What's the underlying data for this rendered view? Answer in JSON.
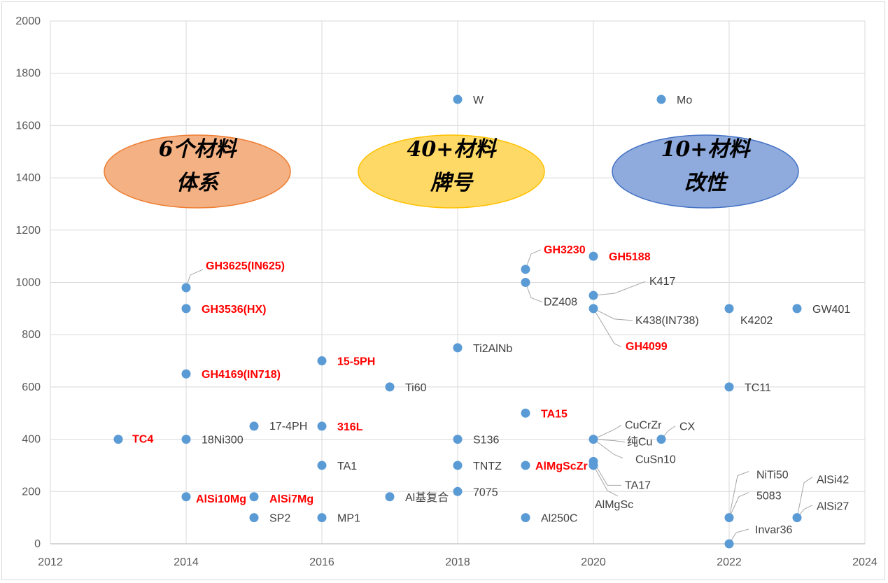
{
  "chart_data": {
    "type": "scatter",
    "title": "",
    "xlabel": "",
    "ylabel": "",
    "xlim": [
      2012,
      2024
    ],
    "ylim": [
      0,
      2000
    ],
    "x_ticks": [
      "2012",
      "2014",
      "2016",
      "2018",
      "2020",
      "2022",
      "2024"
    ],
    "y_ticks": [
      "0",
      "200",
      "400",
      "600",
      "800",
      "1000",
      "1200",
      "1400",
      "1600",
      "1800",
      "2000"
    ],
    "grid": true,
    "point_color": "#5b9bd5",
    "points": [
      {
        "x": 2013,
        "y": 400,
        "label": "TC4",
        "highlight": true
      },
      {
        "x": 2014,
        "y": 980,
        "label": "GH3625(IN625)",
        "highlight": true
      },
      {
        "x": 2014,
        "y": 900,
        "label": "GH3536(HX)",
        "highlight": true
      },
      {
        "x": 2014,
        "y": 650,
        "label": "GH4169(IN718)",
        "highlight": true
      },
      {
        "x": 2014,
        "y": 400,
        "label": "18Ni300",
        "highlight": false
      },
      {
        "x": 2014,
        "y": 180,
        "label": "AlSi10Mg",
        "highlight": true
      },
      {
        "x": 2015,
        "y": 450,
        "label": "17-4PH",
        "highlight": false
      },
      {
        "x": 2015,
        "y": 180,
        "label": "AlSi7Mg",
        "highlight": true
      },
      {
        "x": 2015,
        "y": 100,
        "label": "SP2",
        "highlight": false
      },
      {
        "x": 2016,
        "y": 700,
        "label": "15-5PH",
        "highlight": true
      },
      {
        "x": 2016,
        "y": 450,
        "label": "316L",
        "highlight": true
      },
      {
        "x": 2016,
        "y": 300,
        "label": "TA1",
        "highlight": false
      },
      {
        "x": 2016,
        "y": 100,
        "label": "MP1",
        "highlight": false
      },
      {
        "x": 2017,
        "y": 600,
        "label": "Ti60",
        "highlight": false
      },
      {
        "x": 2017,
        "y": 180,
        "label": "Al基复合",
        "highlight": false
      },
      {
        "x": 2018,
        "y": 1700,
        "label": "W",
        "highlight": false
      },
      {
        "x": 2018,
        "y": 750,
        "label": "Ti2AlNb",
        "highlight": false
      },
      {
        "x": 2018,
        "y": 400,
        "label": "S136",
        "highlight": false
      },
      {
        "x": 2018,
        "y": 300,
        "label": "TNTZ",
        "highlight": false
      },
      {
        "x": 2018,
        "y": 200,
        "label": "7075",
        "highlight": false
      },
      {
        "x": 2019,
        "y": 1050,
        "label": "GH3230",
        "highlight": true
      },
      {
        "x": 2019,
        "y": 1000,
        "label": "DZ408",
        "highlight": false
      },
      {
        "x": 2019,
        "y": 500,
        "label": "TA15",
        "highlight": true
      },
      {
        "x": 2019,
        "y": 300,
        "label": "AlMgScZr",
        "highlight": true
      },
      {
        "x": 2019,
        "y": 100,
        "label": "Al250C",
        "highlight": false
      },
      {
        "x": 2020,
        "y": 1100,
        "label": "GH5188",
        "highlight": true
      },
      {
        "x": 2020,
        "y": 950,
        "label": "K417",
        "highlight": false
      },
      {
        "x": 2020,
        "y": 900,
        "label": "K438(IN738)",
        "highlight": false
      },
      {
        "x": 2020,
        "y": 900,
        "label": "GH4099",
        "highlight": true
      },
      {
        "x": 2020,
        "y": 400,
        "label": "CuCrZr",
        "highlight": false
      },
      {
        "x": 2020,
        "y": 400,
        "label": "纯Cu",
        "highlight": false
      },
      {
        "x": 2020,
        "y": 400,
        "label": "CuSn10",
        "highlight": false
      },
      {
        "x": 2020,
        "y": 315,
        "label": "TA17",
        "highlight": false
      },
      {
        "x": 2020,
        "y": 300,
        "label": "AlMgSc",
        "highlight": false
      },
      {
        "x": 2021,
        "y": 1700,
        "label": "Mo",
        "highlight": false
      },
      {
        "x": 2021,
        "y": 400,
        "label": "CX",
        "highlight": false
      },
      {
        "x": 2022,
        "y": 900,
        "label": "K4202",
        "highlight": false
      },
      {
        "x": 2022,
        "y": 600,
        "label": "TC11",
        "highlight": false
      },
      {
        "x": 2022,
        "y": 100,
        "label": "NiTi50",
        "highlight": false
      },
      {
        "x": 2022,
        "y": 100,
        "label": "5083",
        "highlight": false
      },
      {
        "x": 2022,
        "y": 0,
        "label": "Invar36",
        "highlight": false
      },
      {
        "x": 2023,
        "y": 900,
        "label": "GW401",
        "highlight": false
      },
      {
        "x": 2023,
        "y": 100,
        "label": "AlSi42",
        "highlight": false
      },
      {
        "x": 2023,
        "y": 100,
        "label": "AlSi27",
        "highlight": false
      }
    ],
    "annotations": [
      {
        "line1": "6个材料",
        "line2": "体系",
        "fill": "#f4b183",
        "stroke": "#ed7d31"
      },
      {
        "line1": "40+材料",
        "line2": "牌号",
        "fill": "#ffd966",
        "stroke": "#ffc000"
      },
      {
        "line1": "10+材料",
        "line2": "改性",
        "fill": "#8faadc",
        "stroke": "#4472c4"
      }
    ]
  }
}
